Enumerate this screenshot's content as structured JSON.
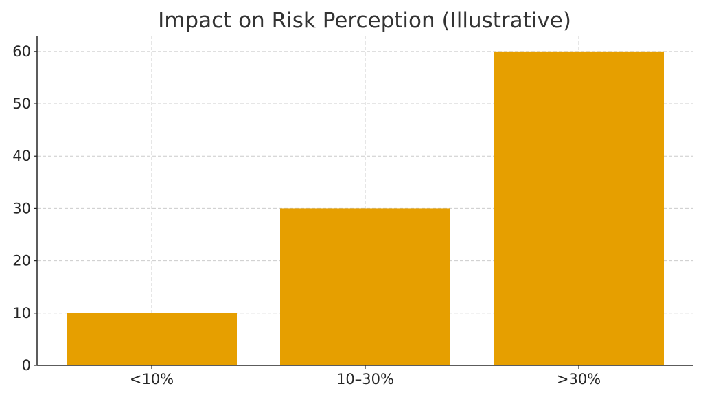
{
  "chart_data": {
    "type": "bar",
    "title": "Impact on Risk Perception (Illustrative)",
    "xlabel": "",
    "ylabel": "",
    "categories": [
      "<10%",
      "10–30%",
      ">30%"
    ],
    "values": [
      10,
      30,
      60
    ],
    "ylim": [
      0,
      63
    ],
    "yticks": [
      0,
      10,
      20,
      30,
      40,
      50,
      60
    ],
    "grid": true,
    "bar_color": "#E69F00"
  }
}
